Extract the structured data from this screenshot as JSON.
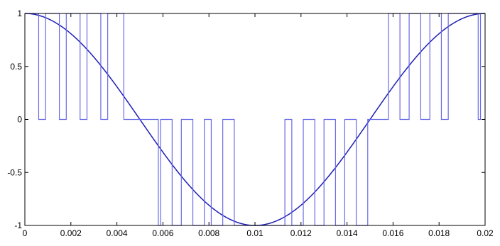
{
  "chart_data": {
    "type": "line",
    "title": "",
    "xlabel": "",
    "ylabel": "",
    "xlim": [
      0,
      0.02
    ],
    "ylim": [
      -1,
      1
    ],
    "grid": false,
    "x_ticks": [
      "0",
      "0.002",
      "0.004",
      "0.006",
      "0.008",
      "0.01",
      "0.012",
      "0.014",
      "0.016",
      "0.018",
      "0.02"
    ],
    "y_ticks": [
      "1",
      "0.5",
      "0",
      "-0.5",
      "-1"
    ],
    "series": [
      {
        "kind": "cosine_reference",
        "color": "#1f1fb4",
        "amplitude": 1,
        "period": 0.02
      },
      {
        "kind": "pwm_three_level",
        "color": "#6a6ae8",
        "levels": [
          -1,
          0,
          1
        ],
        "segments": [
          [
            0.0,
            1
          ],
          [
            0.0006,
            0
          ],
          [
            0.0009,
            1
          ],
          [
            0.0015,
            0
          ],
          [
            0.0018,
            1
          ],
          [
            0.0024,
            0
          ],
          [
            0.0027,
            1
          ],
          [
            0.0033,
            0
          ],
          [
            0.0036,
            1
          ],
          [
            0.0043,
            0
          ],
          [
            0.0058,
            -1
          ],
          [
            0.0059,
            0
          ],
          [
            0.0064,
            -1
          ],
          [
            0.0068,
            0
          ],
          [
            0.0073,
            -1
          ],
          [
            0.0078,
            0
          ],
          [
            0.0081,
            -1
          ],
          [
            0.0086,
            0
          ],
          [
            0.0091,
            -1
          ],
          [
            0.0113,
            0
          ],
          [
            0.0116,
            -1
          ],
          [
            0.0121,
            0
          ],
          [
            0.0126,
            -1
          ],
          [
            0.013,
            0
          ],
          [
            0.0135,
            -1
          ],
          [
            0.0139,
            0
          ],
          [
            0.0144,
            -1
          ],
          [
            0.0149,
            0
          ],
          [
            0.0158,
            1
          ],
          [
            0.0163,
            0
          ],
          [
            0.0167,
            1
          ],
          [
            0.0172,
            0
          ],
          [
            0.0176,
            1
          ],
          [
            0.0181,
            0
          ],
          [
            0.0184,
            1
          ],
          [
            0.0197,
            0
          ],
          [
            0.0198,
            1
          ]
        ],
        "end": 0.02
      }
    ]
  }
}
